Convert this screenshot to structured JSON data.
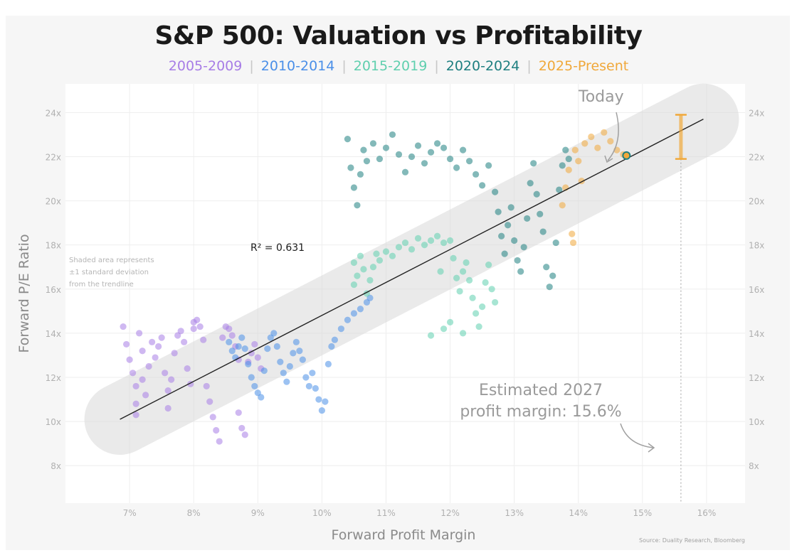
{
  "chart_data": {
    "type": "scatter",
    "title": "S&P 500: Valuation vs Profitability",
    "xlabel": "Forward Profit Margin",
    "ylabel": "Forward P/E Ratio",
    "xlim": [
      6.0,
      16.6
    ],
    "ylim": [
      6.3,
      25.3
    ],
    "x_ticks": [
      "7%",
      "8%",
      "9%",
      "10%",
      "11%",
      "12%",
      "13%",
      "14%",
      "15%",
      "16%"
    ],
    "x_tick_values": [
      7,
      8,
      9,
      10,
      11,
      12,
      13,
      14,
      15,
      16
    ],
    "y_ticks": [
      "8x",
      "10x",
      "12x",
      "14x",
      "16x",
      "18x",
      "20x",
      "22x",
      "24x"
    ],
    "y_tick_values": [
      8,
      10,
      12,
      14,
      16,
      18,
      20,
      22,
      24
    ],
    "grid": true,
    "legend_position": "top-center",
    "series": [
      {
        "name": "2005-2009",
        "color": "#a77de6",
        "points": [
          [
            6.9,
            14.3
          ],
          [
            6.95,
            13.5
          ],
          [
            7.0,
            12.8
          ],
          [
            7.05,
            12.2
          ],
          [
            7.1,
            11.6
          ],
          [
            7.1,
            10.8
          ],
          [
            7.1,
            10.3
          ],
          [
            7.15,
            14.0
          ],
          [
            7.2,
            13.2
          ],
          [
            7.2,
            11.9
          ],
          [
            7.25,
            11.2
          ],
          [
            7.3,
            12.5
          ],
          [
            7.35,
            13.6
          ],
          [
            7.4,
            12.9
          ],
          [
            7.45,
            13.4
          ],
          [
            7.5,
            13.8
          ],
          [
            7.55,
            12.2
          ],
          [
            7.6,
            11.4
          ],
          [
            7.6,
            10.6
          ],
          [
            7.65,
            11.9
          ],
          [
            7.7,
            13.1
          ],
          [
            7.75,
            13.9
          ],
          [
            7.8,
            14.1
          ],
          [
            7.85,
            13.6
          ],
          [
            7.9,
            12.4
          ],
          [
            7.95,
            11.7
          ],
          [
            8.0,
            14.2
          ],
          [
            8.0,
            14.5
          ],
          [
            8.05,
            14.6
          ],
          [
            8.1,
            14.3
          ],
          [
            8.15,
            13.7
          ],
          [
            8.2,
            11.6
          ],
          [
            8.25,
            10.9
          ],
          [
            8.3,
            10.2
          ],
          [
            8.35,
            9.6
          ],
          [
            8.4,
            9.1
          ],
          [
            8.45,
            13.8
          ],
          [
            8.5,
            14.3
          ],
          [
            8.55,
            14.2
          ],
          [
            8.6,
            13.9
          ],
          [
            8.65,
            13.4
          ],
          [
            8.7,
            12.8
          ],
          [
            8.7,
            10.4
          ],
          [
            8.75,
            9.7
          ],
          [
            8.8,
            9.4
          ],
          [
            8.85,
            12.7
          ],
          [
            8.9,
            13.1
          ],
          [
            8.95,
            13.5
          ],
          [
            9.0,
            12.9
          ],
          [
            9.05,
            12.4
          ]
        ]
      },
      {
        "name": "2010-2014",
        "color": "#4a8fe8",
        "points": [
          [
            8.55,
            13.6
          ],
          [
            8.6,
            13.2
          ],
          [
            8.65,
            12.9
          ],
          [
            8.7,
            13.4
          ],
          [
            8.75,
            13.8
          ],
          [
            8.8,
            13.3
          ],
          [
            8.85,
            12.6
          ],
          [
            8.9,
            12.0
          ],
          [
            8.95,
            11.6
          ],
          [
            9.0,
            11.3
          ],
          [
            9.05,
            11.1
          ],
          [
            9.1,
            12.3
          ],
          [
            9.15,
            13.3
          ],
          [
            9.2,
            13.8
          ],
          [
            9.25,
            14.0
          ],
          [
            9.3,
            13.4
          ],
          [
            9.35,
            12.7
          ],
          [
            9.4,
            12.2
          ],
          [
            9.45,
            11.8
          ],
          [
            9.5,
            12.5
          ],
          [
            9.55,
            13.1
          ],
          [
            9.6,
            13.6
          ],
          [
            9.65,
            13.2
          ],
          [
            9.7,
            12.8
          ],
          [
            9.75,
            12.0
          ],
          [
            9.8,
            11.6
          ],
          [
            9.85,
            12.2
          ],
          [
            9.9,
            11.5
          ],
          [
            9.95,
            11.0
          ],
          [
            10.0,
            10.5
          ],
          [
            10.05,
            10.9
          ],
          [
            10.1,
            12.6
          ],
          [
            10.15,
            13.4
          ],
          [
            10.2,
            13.7
          ],
          [
            10.3,
            14.2
          ],
          [
            10.4,
            14.6
          ],
          [
            10.5,
            14.9
          ],
          [
            10.6,
            15.1
          ],
          [
            10.7,
            15.4
          ],
          [
            10.75,
            15.6
          ]
        ]
      },
      {
        "name": "2015-2019",
        "color": "#5fcfae",
        "points": [
          [
            10.5,
            16.2
          ],
          [
            10.5,
            17.2
          ],
          [
            10.55,
            16.6
          ],
          [
            10.6,
            17.5
          ],
          [
            10.65,
            16.9
          ],
          [
            10.7,
            15.8
          ],
          [
            10.75,
            16.4
          ],
          [
            10.8,
            17.0
          ],
          [
            10.85,
            17.6
          ],
          [
            10.9,
            17.3
          ],
          [
            11.0,
            17.7
          ],
          [
            11.1,
            17.5
          ],
          [
            11.2,
            17.9
          ],
          [
            11.3,
            18.1
          ],
          [
            11.4,
            17.8
          ],
          [
            11.5,
            18.3
          ],
          [
            11.6,
            18.0
          ],
          [
            11.7,
            18.2
          ],
          [
            11.8,
            18.4
          ],
          [
            11.9,
            18.1
          ],
          [
            12.0,
            18.2
          ],
          [
            12.05,
            17.4
          ],
          [
            12.1,
            16.5
          ],
          [
            12.15,
            15.9
          ],
          [
            12.2,
            16.8
          ],
          [
            12.25,
            17.2
          ],
          [
            12.3,
            16.4
          ],
          [
            12.35,
            15.6
          ],
          [
            12.4,
            14.9
          ],
          [
            12.45,
            14.3
          ],
          [
            12.5,
            15.2
          ],
          [
            12.55,
            16.3
          ],
          [
            12.6,
            17.1
          ],
          [
            12.65,
            16.0
          ],
          [
            12.7,
            15.4
          ],
          [
            11.9,
            14.2
          ],
          [
            12.0,
            14.5
          ],
          [
            11.7,
            13.9
          ],
          [
            11.85,
            16.8
          ],
          [
            12.2,
            14.0
          ]
        ]
      },
      {
        "name": "2020-2024",
        "color": "#1e7f80",
        "points": [
          [
            10.4,
            22.8
          ],
          [
            10.45,
            21.5
          ],
          [
            10.5,
            20.6
          ],
          [
            10.55,
            19.8
          ],
          [
            10.6,
            21.2
          ],
          [
            10.65,
            22.3
          ],
          [
            10.7,
            21.8
          ],
          [
            10.8,
            22.6
          ],
          [
            10.9,
            21.9
          ],
          [
            11.0,
            22.4
          ],
          [
            11.1,
            23.0
          ],
          [
            11.2,
            22.1
          ],
          [
            11.3,
            21.3
          ],
          [
            11.4,
            22.0
          ],
          [
            11.5,
            22.5
          ],
          [
            11.6,
            21.7
          ],
          [
            11.7,
            22.2
          ],
          [
            11.8,
            22.6
          ],
          [
            11.9,
            22.4
          ],
          [
            12.0,
            21.9
          ],
          [
            12.1,
            21.5
          ],
          [
            12.2,
            22.3
          ],
          [
            12.3,
            21.8
          ],
          [
            12.4,
            21.2
          ],
          [
            12.5,
            20.7
          ],
          [
            12.6,
            21.6
          ],
          [
            12.7,
            20.4
          ],
          [
            12.75,
            19.5
          ],
          [
            12.8,
            18.4
          ],
          [
            12.85,
            17.6
          ],
          [
            12.9,
            18.9
          ],
          [
            12.95,
            19.7
          ],
          [
            13.0,
            18.2
          ],
          [
            13.05,
            17.3
          ],
          [
            13.1,
            16.8
          ],
          [
            13.15,
            17.9
          ],
          [
            13.2,
            19.2
          ],
          [
            13.25,
            20.8
          ],
          [
            13.3,
            21.7
          ],
          [
            13.35,
            20.3
          ],
          [
            13.4,
            19.4
          ],
          [
            13.45,
            18.6
          ],
          [
            13.5,
            17.0
          ],
          [
            13.55,
            16.1
          ],
          [
            13.6,
            16.6
          ],
          [
            13.65,
            18.1
          ],
          [
            13.7,
            20.5
          ],
          [
            13.75,
            21.6
          ],
          [
            13.8,
            22.3
          ],
          [
            13.85,
            21.9
          ]
        ]
      },
      {
        "name": "2025-Present",
        "color": "#f0a83a",
        "points": [
          [
            13.75,
            19.8
          ],
          [
            13.8,
            20.6
          ],
          [
            13.85,
            21.4
          ],
          [
            13.9,
            18.5
          ],
          [
            13.92,
            18.1
          ],
          [
            13.95,
            22.3
          ],
          [
            14.0,
            21.8
          ],
          [
            14.05,
            20.9
          ],
          [
            14.1,
            22.6
          ],
          [
            14.2,
            22.9
          ],
          [
            14.3,
            22.4
          ],
          [
            14.4,
            23.1
          ],
          [
            14.5,
            22.7
          ],
          [
            14.6,
            22.3
          ],
          [
            14.7,
            22.1
          ]
        ]
      }
    ],
    "trendline": {
      "x": [
        6.85,
        15.95
      ],
      "y": [
        10.1,
        23.7
      ]
    },
    "r_squared_label": "R² = 0.631",
    "today_point": {
      "x": 14.75,
      "y": 22.05
    },
    "estimate_marker": {
      "x": 15.6,
      "y_low": 21.9,
      "y_high": 23.9
    }
  },
  "labels": {
    "title": "S&P 500: Valuation vs Profitability",
    "xlabel": "Forward Profit Margin",
    "ylabel": "Forward P/E Ratio",
    "r_squared": "R² = 0.631",
    "shaded_note_1": "Shaded area represents",
    "shaded_note_2": "±1 standard deviation",
    "shaded_note_3": "from the trendline",
    "today": "Today",
    "estimate_1": "Estimated 2027",
    "estimate_2": "profit margin: 15.6%",
    "source": "Source: Duality Research, Bloomberg"
  },
  "legend": [
    {
      "label": "2005-2009",
      "color": "#a77de6"
    },
    {
      "label": "2010-2014",
      "color": "#4a8fe8"
    },
    {
      "label": "2015-2019",
      "color": "#5fcfae"
    },
    {
      "label": "2020-2024",
      "color": "#1e7f80"
    },
    {
      "label": "2025-Present",
      "color": "#f0a83a"
    }
  ]
}
